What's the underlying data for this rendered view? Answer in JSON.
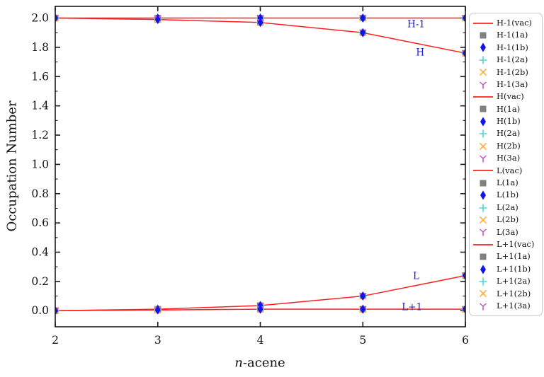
{
  "figure": {
    "background": "#ffffff",
    "frame_color": "#1a1a1a",
    "annotation_color": "#2222cc"
  },
  "axes": {
    "y_label": "Occupation Number",
    "x_label_italic": "n",
    "x_label_rest": "-acene"
  },
  "chart_data": {
    "type": "line",
    "title": "",
    "xlabel": "n-acene",
    "ylabel": "Occupation Number",
    "x": [
      2,
      3,
      4,
      5,
      6
    ],
    "xlim": [
      2,
      6
    ],
    "ylim": [
      -0.11,
      2.08
    ],
    "x_tick_labels": [
      "2",
      "3",
      "4",
      "5",
      "6"
    ],
    "y_tick_labels": [
      "0.0",
      "0.2",
      "0.4",
      "0.6",
      "0.8",
      "1.0",
      "1.2",
      "1.4",
      "1.6",
      "1.8",
      "2.0"
    ],
    "y_major_step": 0.2,
    "y_minor_step": 0.1,
    "grid": false,
    "legend_position": "right",
    "line_color": "#ff1f1f",
    "orbital_groups": [
      {
        "name": "H-1",
        "values": [
          2.0,
          2.0,
          2.0,
          2.0,
          2.0
        ]
      },
      {
        "name": "H",
        "values": [
          2.0,
          1.99,
          1.97,
          1.9,
          1.76
        ]
      },
      {
        "name": "L",
        "values": [
          0.0,
          0.01,
          0.035,
          0.1,
          0.24
        ]
      },
      {
        "name": "L+1",
        "values": [
          0.0,
          0.005,
          0.01,
          0.01,
          0.01
        ]
      }
    ],
    "variant_styles": [
      {
        "suffix": "(vac)",
        "marker": "line",
        "color": "#ff1f1f"
      },
      {
        "suffix": "(1a)",
        "marker": "square",
        "color": "#808080"
      },
      {
        "suffix": "(1b)",
        "marker": "diamond",
        "color": "#1212f0"
      },
      {
        "suffix": "(2a)",
        "marker": "plus",
        "color": "#4fd6d6"
      },
      {
        "suffix": "(2b)",
        "marker": "x",
        "color": "#ffb040"
      },
      {
        "suffix": "(3a)",
        "marker": "y",
        "color": "#c44fc4"
      }
    ],
    "annotations": [
      {
        "text": "H-1",
        "x": 5.52,
        "y": 1.96
      },
      {
        "text": "H",
        "x": 5.56,
        "y": 1.765
      },
      {
        "text": "L",
        "x": 5.52,
        "y": 0.238
      },
      {
        "text": "L+1",
        "x": 5.48,
        "y": 0.025
      }
    ]
  },
  "legend": {
    "entries": [
      {
        "label": "H-1(vac)",
        "marker": "line",
        "color": "#ff1f1f"
      },
      {
        "label": "H-1(1a)",
        "marker": "square",
        "color": "#808080"
      },
      {
        "label": "H-1(1b)",
        "marker": "diamond",
        "color": "#1212f0"
      },
      {
        "label": "H-1(2a)",
        "marker": "plus",
        "color": "#4fd6d6"
      },
      {
        "label": "H-1(2b)",
        "marker": "x",
        "color": "#ffb040"
      },
      {
        "label": "H-1(3a)",
        "marker": "y",
        "color": "#c44fc4"
      },
      {
        "label": "H(vac)",
        "marker": "line",
        "color": "#ff1f1f"
      },
      {
        "label": "H(1a)",
        "marker": "square",
        "color": "#808080"
      },
      {
        "label": "H(1b)",
        "marker": "diamond",
        "color": "#1212f0"
      },
      {
        "label": "H(2a)",
        "marker": "plus",
        "color": "#4fd6d6"
      },
      {
        "label": "H(2b)",
        "marker": "x",
        "color": "#ffb040"
      },
      {
        "label": "H(3a)",
        "marker": "y",
        "color": "#c44fc4"
      },
      {
        "label": "L(vac)",
        "marker": "line",
        "color": "#ff1f1f"
      },
      {
        "label": "L(1a)",
        "marker": "square",
        "color": "#808080"
      },
      {
        "label": "L(1b)",
        "marker": "diamond",
        "color": "#1212f0"
      },
      {
        "label": "L(2a)",
        "marker": "plus",
        "color": "#4fd6d6"
      },
      {
        "label": "L(2b)",
        "marker": "x",
        "color": "#ffb040"
      },
      {
        "label": "L(3a)",
        "marker": "y",
        "color": "#c44fc4"
      },
      {
        "label": "L+1(vac)",
        "marker": "line",
        "color": "#ff1f1f"
      },
      {
        "label": "L+1(1a)",
        "marker": "square",
        "color": "#808080"
      },
      {
        "label": "L+1(1b)",
        "marker": "diamond",
        "color": "#1212f0"
      },
      {
        "label": "L+1(2a)",
        "marker": "plus",
        "color": "#4fd6d6"
      },
      {
        "label": "L+1(2b)",
        "marker": "x",
        "color": "#ffb040"
      },
      {
        "label": "L+1(3a)",
        "marker": "y",
        "color": "#c44fc4"
      }
    ]
  }
}
